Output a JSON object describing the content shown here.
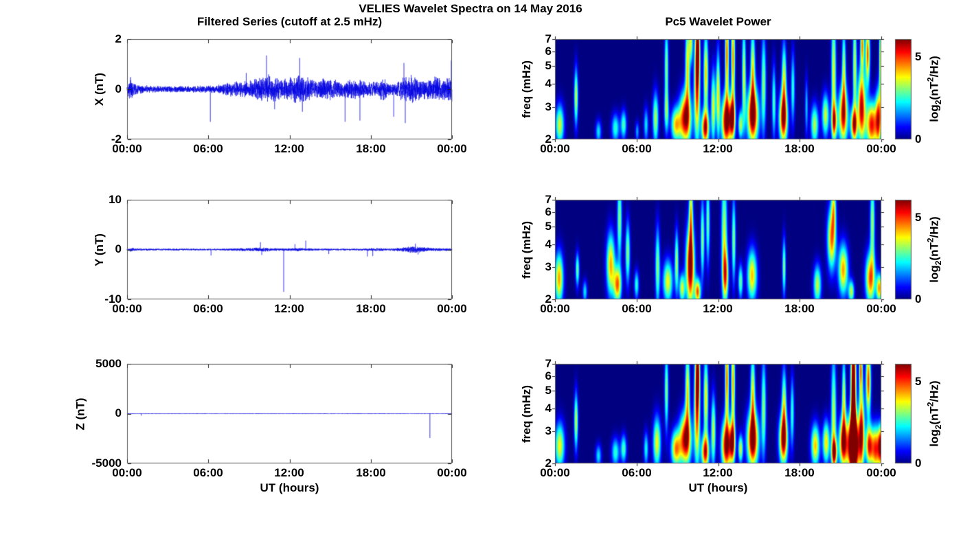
{
  "figure": {
    "title": "VELIES Wavelet Spectra on 14 May 2016",
    "left_title": "Filtered Series (cutoff at 2.5 mHz)",
    "right_title": "Pc5 Wavelet Power"
  },
  "axes": {
    "time_ticks": [
      "00:00",
      "06:00",
      "12:00",
      "18:00",
      "00:00"
    ],
    "time_label": "UT (hours)",
    "time_lim_hours": [
      0,
      24
    ],
    "freq_label": "freq (mHz)",
    "freq_ticks": [
      "7",
      "6",
      "5",
      "4",
      "3",
      "2"
    ],
    "freq_lim_mhz": [
      2,
      7
    ],
    "freq_scale": "log"
  },
  "colorbar": {
    "ticks": [
      "5",
      "0"
    ],
    "max_value": 6.1,
    "colormap": "jet",
    "label": {
      "fn": "log",
      "sub": "2",
      "open": "(nT",
      "sup": "2",
      "close": "/Hz)"
    }
  },
  "colors": {
    "series_line": "#0000E0",
    "background": "#FFFFFF",
    "heat_background": "#000080",
    "axis_box": "#555555"
  },
  "chart_data": [
    {
      "type": "line",
      "panel": "X filtered series",
      "ylabel": "X (nT)",
      "ylim": [
        -2,
        2
      ],
      "yticks": [
        "2",
        "0",
        "-2"
      ],
      "seed": 42,
      "noise_envelope": [
        [
          0,
          0.1
        ],
        [
          0.25,
          0.38
        ],
        [
          0.6,
          0.16
        ],
        [
          1.5,
          0.11
        ],
        [
          3,
          0.09
        ],
        [
          5,
          0.1
        ],
        [
          6.5,
          0.12
        ],
        [
          7.5,
          0.2
        ],
        [
          8.2,
          0.26
        ],
        [
          9,
          0.26
        ],
        [
          9.8,
          0.36
        ],
        [
          10.4,
          0.42
        ],
        [
          11,
          0.36
        ],
        [
          11.8,
          0.32
        ],
        [
          12.4,
          0.4
        ],
        [
          13,
          0.42
        ],
        [
          13.5,
          0.32
        ],
        [
          14,
          0.26
        ],
        [
          14.6,
          0.36
        ],
        [
          15.2,
          0.3
        ],
        [
          16,
          0.27
        ],
        [
          16.6,
          0.32
        ],
        [
          17.2,
          0.28
        ],
        [
          17.8,
          0.22
        ],
        [
          18.4,
          0.2
        ],
        [
          18.9,
          0.36
        ],
        [
          19.3,
          0.22
        ],
        [
          19.9,
          0.2
        ],
        [
          20.5,
          0.4
        ],
        [
          21.1,
          0.42
        ],
        [
          21.7,
          0.33
        ],
        [
          22.1,
          0.28
        ],
        [
          22.7,
          0.38
        ],
        [
          23.2,
          0.33
        ],
        [
          23.7,
          0.38
        ],
        [
          24,
          0.42
        ]
      ],
      "spikes": [
        [
          6.15,
          -1.3
        ],
        [
          8.8,
          0.65
        ],
        [
          10.3,
          1.35
        ],
        [
          10.9,
          -0.8
        ],
        [
          12.75,
          1.25
        ],
        [
          12.95,
          -0.9
        ],
        [
          16.1,
          -1.3
        ],
        [
          17.2,
          -1.25
        ],
        [
          19.7,
          -1.1
        ],
        [
          20.45,
          1.05
        ],
        [
          20.55,
          -1.35
        ],
        [
          23.95,
          1.15
        ]
      ]
    },
    {
      "type": "line",
      "panel": "Y filtered series",
      "ylabel": "Y (nT)",
      "ylim": [
        -10,
        10
      ],
      "yticks": [
        "10",
        "0",
        "-10"
      ],
      "seed": 77,
      "noise_envelope": [
        [
          0,
          0.15
        ],
        [
          0.25,
          0.35
        ],
        [
          0.6,
          0.18
        ],
        [
          2,
          0.13
        ],
        [
          4,
          0.16
        ],
        [
          6,
          0.13
        ],
        [
          7.5,
          0.16
        ],
        [
          9.5,
          0.28
        ],
        [
          10.1,
          0.32
        ],
        [
          10.6,
          0.22
        ],
        [
          11.5,
          0.18
        ],
        [
          12.2,
          0.22
        ],
        [
          13,
          0.24
        ],
        [
          13.5,
          0.18
        ],
        [
          15,
          0.14
        ],
        [
          17,
          0.14
        ],
        [
          18.6,
          0.25
        ],
        [
          19.2,
          0.16
        ],
        [
          20.2,
          0.28
        ],
        [
          20.8,
          0.45
        ],
        [
          21.2,
          0.55
        ],
        [
          21.8,
          0.4
        ],
        [
          22.4,
          0.25
        ],
        [
          23.2,
          0.22
        ],
        [
          24,
          0.18
        ]
      ],
      "spikes": [
        [
          6.2,
          -1.2
        ],
        [
          9.85,
          1.5
        ],
        [
          9.95,
          -1.1
        ],
        [
          11.57,
          -8.5
        ],
        [
          12.4,
          1.1
        ],
        [
          13.2,
          1.8
        ],
        [
          14.9,
          -0.9
        ],
        [
          17.75,
          -1.4
        ],
        [
          18.15,
          -1.3
        ],
        [
          21.3,
          1.2
        ],
        [
          21.5,
          -1.0
        ]
      ]
    },
    {
      "type": "line",
      "panel": "Z filtered series",
      "ylabel": "Z (nT)",
      "ylim": [
        -5000,
        5000
      ],
      "yticks": [
        "5000",
        "0",
        "-5000"
      ],
      "seed": 11,
      "noise_envelope": [
        [
          0,
          22
        ],
        [
          24,
          22
        ]
      ],
      "spikes": [
        [
          1.05,
          -200
        ],
        [
          22.37,
          -2450
        ]
      ]
    },
    {
      "type": "heatmap",
      "panel": "X wavelet power",
      "ylabel": "freq (mHz)",
      "blob_format": [
        "hour",
        "freq_mHz",
        "sigma_hours",
        "sigma_normlogfreq",
        "peak_log2_power"
      ],
      "blobs": [
        [
          0.35,
          2.4,
          0.22,
          0.14,
          3.6
        ],
        [
          1.55,
          3.4,
          0.1,
          0.2,
          3.6
        ],
        [
          3.2,
          2.2,
          0.15,
          0.08,
          2.2
        ],
        [
          4.45,
          2.3,
          0.2,
          0.1,
          2.6
        ],
        [
          5.05,
          2.4,
          0.15,
          0.1,
          2.8
        ],
        [
          6.05,
          2.2,
          0.1,
          0.07,
          1.8
        ],
        [
          6.7,
          2.4,
          0.12,
          0.12,
          2.2
        ],
        [
          7.4,
          2.6,
          0.15,
          0.18,
          3.4
        ],
        [
          8.2,
          5.0,
          0.1,
          0.28,
          3.2
        ],
        [
          8.2,
          2.8,
          0.12,
          0.15,
          2.6
        ],
        [
          8.9,
          2.4,
          0.25,
          0.12,
          4.0
        ],
        [
          9.6,
          2.6,
          0.3,
          0.18,
          6.0
        ],
        [
          9.75,
          5.0,
          0.12,
          0.3,
          4.0
        ],
        [
          10.0,
          6.8,
          0.1,
          0.15,
          3.4
        ],
        [
          10.45,
          4.0,
          0.15,
          0.4,
          5.4
        ],
        [
          10.5,
          6.3,
          0.1,
          0.2,
          4.4
        ],
        [
          11.05,
          2.3,
          0.2,
          0.12,
          5.4
        ],
        [
          11.1,
          4.5,
          0.12,
          0.3,
          4.2
        ],
        [
          11.65,
          3.0,
          0.12,
          0.25,
          3.8
        ],
        [
          12.0,
          3.5,
          0.1,
          0.3,
          4.0
        ],
        [
          12.6,
          2.5,
          0.25,
          0.18,
          6.2
        ],
        [
          12.65,
          5.8,
          0.1,
          0.35,
          4.8
        ],
        [
          13.05,
          2.6,
          0.15,
          0.15,
          5.2
        ],
        [
          13.1,
          5.5,
          0.1,
          0.35,
          4.6
        ],
        [
          13.65,
          2.4,
          0.12,
          0.1,
          3.4
        ],
        [
          13.9,
          4.5,
          0.1,
          0.35,
          3.6
        ],
        [
          14.55,
          2.7,
          0.3,
          0.2,
          6.2
        ],
        [
          14.55,
          4.8,
          0.12,
          0.3,
          3.8
        ],
        [
          15.35,
          4.0,
          0.12,
          0.35,
          3.2
        ],
        [
          16.1,
          3.2,
          0.1,
          0.25,
          2.8
        ],
        [
          16.8,
          2.6,
          0.22,
          0.18,
          5.8
        ],
        [
          16.85,
          4.3,
          0.12,
          0.25,
          3.6
        ],
        [
          17.5,
          3.8,
          0.1,
          0.25,
          2.6
        ],
        [
          18.5,
          3.0,
          0.08,
          0.2,
          2.0
        ],
        [
          19.1,
          2.4,
          0.2,
          0.14,
          3.4
        ],
        [
          19.9,
          2.7,
          0.18,
          0.15,
          3.6
        ],
        [
          20.5,
          4.5,
          0.12,
          0.45,
          3.8
        ],
        [
          20.55,
          2.5,
          0.15,
          0.12,
          4.0
        ],
        [
          21.2,
          2.7,
          0.25,
          0.2,
          5.2
        ],
        [
          21.25,
          4.8,
          0.1,
          0.3,
          3.4
        ],
        [
          22.0,
          2.4,
          0.18,
          0.12,
          5.2
        ],
        [
          22.05,
          5.0,
          0.1,
          0.4,
          3.6
        ],
        [
          22.55,
          3.0,
          0.2,
          0.25,
          5.8
        ],
        [
          22.6,
          6.6,
          0.1,
          0.18,
          4.4
        ],
        [
          23.0,
          5.8,
          0.12,
          0.22,
          4.8
        ],
        [
          23.3,
          2.4,
          0.3,
          0.16,
          5.4
        ],
        [
          23.8,
          2.6,
          0.15,
          0.2,
          4.6
        ],
        [
          23.95,
          5.5,
          0.08,
          0.3,
          4.0
        ]
      ]
    },
    {
      "type": "heatmap",
      "panel": "Y wavelet power",
      "ylabel": "freq (mHz)",
      "blob_format": [
        "hour",
        "freq_mHz",
        "sigma_hours",
        "sigma_normlogfreq",
        "peak_log2_power"
      ],
      "blobs": [
        [
          0.3,
          2.6,
          0.22,
          0.18,
          4.4
        ],
        [
          1.65,
          2.9,
          0.1,
          0.12,
          3.0
        ],
        [
          2.2,
          2.2,
          0.12,
          0.08,
          2.2
        ],
        [
          4.1,
          3.1,
          0.22,
          0.22,
          4.3
        ],
        [
          4.6,
          2.4,
          0.2,
          0.13,
          4.6
        ],
        [
          4.75,
          5.5,
          0.12,
          0.3,
          3.2
        ],
        [
          5.35,
          3.6,
          0.12,
          0.22,
          3.2
        ],
        [
          6.0,
          2.4,
          0.12,
          0.1,
          2.6
        ],
        [
          7.55,
          3.0,
          0.12,
          0.28,
          3.2
        ],
        [
          8.3,
          2.5,
          0.25,
          0.15,
          3.8
        ],
        [
          8.95,
          3.2,
          0.1,
          0.22,
          3.4
        ],
        [
          9.35,
          2.3,
          0.15,
          0.1,
          3.6
        ],
        [
          9.95,
          3.0,
          0.22,
          0.28,
          6.2
        ],
        [
          10.0,
          6.0,
          0.1,
          0.3,
          3.6
        ],
        [
          10.5,
          2.2,
          0.15,
          0.09,
          4.8
        ],
        [
          10.85,
          4.3,
          0.1,
          0.28,
          3.2
        ],
        [
          11.25,
          5.3,
          0.1,
          0.3,
          3.0
        ],
        [
          12.45,
          4.5,
          0.15,
          0.45,
          3.5
        ],
        [
          12.55,
          2.7,
          0.15,
          0.18,
          3.8
        ],
        [
          13.15,
          4.2,
          0.1,
          0.3,
          3.2
        ],
        [
          13.65,
          2.5,
          0.12,
          0.12,
          3.0
        ],
        [
          14.5,
          2.7,
          0.25,
          0.18,
          4.2
        ],
        [
          16.85,
          3.0,
          0.09,
          0.2,
          3.2
        ],
        [
          19.3,
          2.4,
          0.2,
          0.14,
          3.5
        ],
        [
          20.35,
          4.3,
          0.22,
          0.22,
          4.6
        ],
        [
          20.5,
          6.4,
          0.12,
          0.18,
          3.0
        ],
        [
          21.2,
          2.9,
          0.25,
          0.18,
          4.4
        ],
        [
          21.8,
          2.2,
          0.15,
          0.08,
          3.4
        ],
        [
          23.2,
          2.6,
          0.25,
          0.18,
          4.8
        ],
        [
          23.35,
          5.3,
          0.12,
          0.3,
          3.3
        ],
        [
          23.85,
          2.3,
          0.15,
          0.1,
          4.4
        ]
      ]
    },
    {
      "type": "heatmap",
      "panel": "Z wavelet power",
      "ylabel": "freq (mHz)",
      "blob_format": [
        "hour",
        "freq_mHz",
        "sigma_hours",
        "sigma_normlogfreq",
        "peak_log2_power"
      ],
      "blobs": [
        [
          0.35,
          2.5,
          0.25,
          0.16,
          3.8
        ],
        [
          1.55,
          3.4,
          0.1,
          0.2,
          3.6
        ],
        [
          3.2,
          2.2,
          0.15,
          0.08,
          2.2
        ],
        [
          4.45,
          2.3,
          0.2,
          0.1,
          2.6
        ],
        [
          5.05,
          2.4,
          0.15,
          0.1,
          2.8
        ],
        [
          6.7,
          2.4,
          0.12,
          0.12,
          2.4
        ],
        [
          7.5,
          2.6,
          0.2,
          0.18,
          3.8
        ],
        [
          8.2,
          5.0,
          0.1,
          0.28,
          3.2
        ],
        [
          8.9,
          2.4,
          0.25,
          0.13,
          4.4
        ],
        [
          9.6,
          2.7,
          0.3,
          0.18,
          6.0
        ],
        [
          9.75,
          5.0,
          0.12,
          0.3,
          4.0
        ],
        [
          10.45,
          4.0,
          0.15,
          0.4,
          5.2
        ],
        [
          10.5,
          6.3,
          0.1,
          0.2,
          4.2
        ],
        [
          11.05,
          2.3,
          0.2,
          0.12,
          5.2
        ],
        [
          11.1,
          4.5,
          0.12,
          0.3,
          4.0
        ],
        [
          11.65,
          3.0,
          0.12,
          0.25,
          3.6
        ],
        [
          12.6,
          2.5,
          0.25,
          0.18,
          6.0
        ],
        [
          12.65,
          5.8,
          0.1,
          0.35,
          4.8
        ],
        [
          13.05,
          2.6,
          0.15,
          0.15,
          5.0
        ],
        [
          13.1,
          5.5,
          0.1,
          0.35,
          4.4
        ],
        [
          13.65,
          2.4,
          0.12,
          0.1,
          3.6
        ],
        [
          14.55,
          2.7,
          0.3,
          0.2,
          6.2
        ],
        [
          14.55,
          4.8,
          0.12,
          0.3,
          3.8
        ],
        [
          15.35,
          4.0,
          0.12,
          0.35,
          3.2
        ],
        [
          16.8,
          2.7,
          0.22,
          0.18,
          5.8
        ],
        [
          16.85,
          4.3,
          0.12,
          0.25,
          3.4
        ],
        [
          17.45,
          3.8,
          0.1,
          0.25,
          2.6
        ],
        [
          19.15,
          2.5,
          0.22,
          0.15,
          4.2
        ],
        [
          19.95,
          2.6,
          0.18,
          0.15,
          4.0
        ],
        [
          20.5,
          3.5,
          0.13,
          0.45,
          3.6
        ],
        [
          20.55,
          2.3,
          0.15,
          0.1,
          4.4
        ],
        [
          21.2,
          2.6,
          0.22,
          0.18,
          5.6
        ],
        [
          21.25,
          4.6,
          0.1,
          0.28,
          3.6
        ],
        [
          21.95,
          2.5,
          0.3,
          0.2,
          9.0
        ],
        [
          21.95,
          4.8,
          0.13,
          0.5,
          8.0
        ],
        [
          22.5,
          6.6,
          0.09,
          0.18,
          4.6
        ],
        [
          22.55,
          3.0,
          0.15,
          0.28,
          5.4
        ],
        [
          23.05,
          5.6,
          0.13,
          0.24,
          5.0
        ],
        [
          23.1,
          2.5,
          0.18,
          0.14,
          4.8
        ],
        [
          23.6,
          2.4,
          0.25,
          0.16,
          5.2
        ],
        [
          23.95,
          2.5,
          0.12,
          0.14,
          4.6
        ]
      ]
    }
  ]
}
